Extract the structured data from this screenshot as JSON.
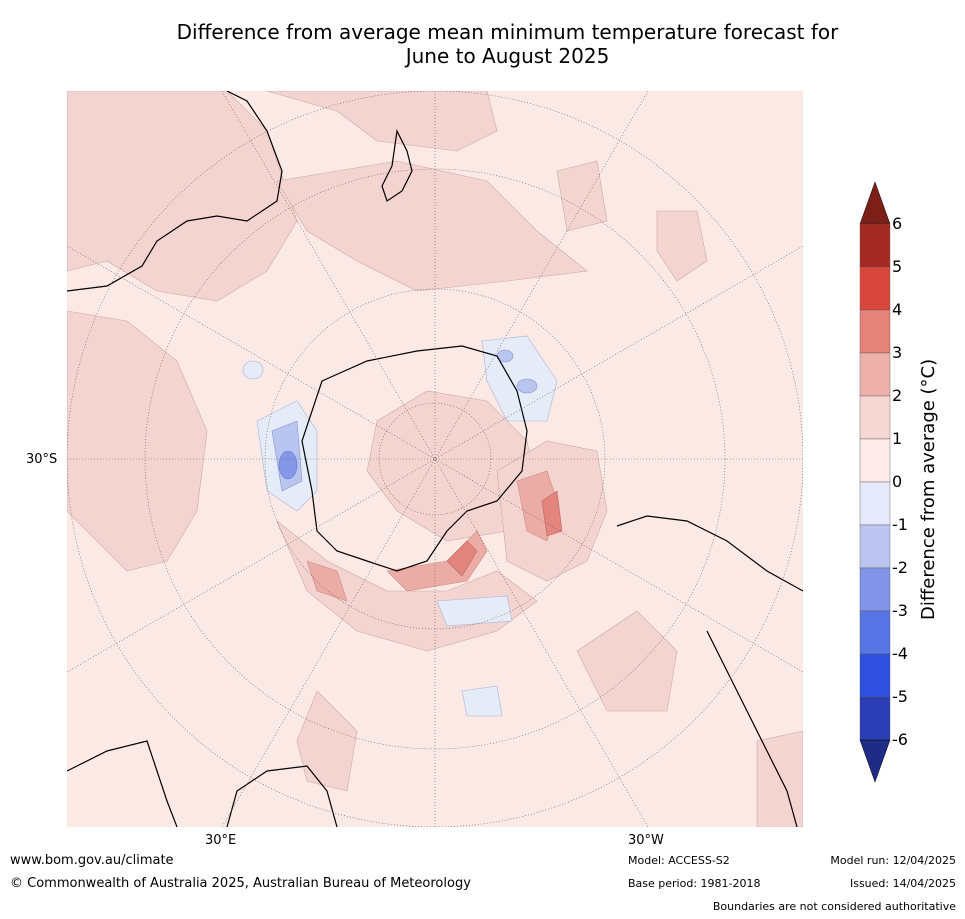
{
  "title_line1": "Difference from average mean minimum temperature forecast for",
  "title_line2": "June to August 2025",
  "map": {
    "lat_label": "30°S",
    "lon_labels": [
      "30°E",
      "30°W"
    ],
    "colors": {
      "ocean_bg": "#fbe9e6",
      "pos_0_1": "#fbe9e6",
      "pos_1_2": "#f4d4d0",
      "pos_2_3": "#ebaca5",
      "pos_3_4": "#e3857c",
      "neg_0_1": "#e6ebf8",
      "neg_1_2": "#bac5ef",
      "neg_2_3": "#8497e8"
    }
  },
  "colorbar": {
    "axis_label": "Difference from average (°C)",
    "ticks": [
      "6",
      "5",
      "4",
      "3",
      "2",
      "1",
      "0",
      "-1",
      "-2",
      "-3",
      "-4",
      "-5",
      "-6"
    ],
    "colors": [
      "#a42a23",
      "#d9473c",
      "#e5837a",
      "#eeb1aa",
      "#f6d6d3",
      "#fcebe9",
      "#e5e9f9",
      "#bcc5f0",
      "#8194e7",
      "#5775e5",
      "#2f4fe0",
      "#2b3db5"
    ],
    "top_arrow_color": "#7b1f17",
    "bottom_arrow_color": "#1f2b85"
  },
  "footer": {
    "website": "www.bom.gov.au/climate",
    "copyright": "© Commonwealth of Australia 2025, Australian Bureau of Meteorology",
    "model": "Model: ACCESS-S2",
    "base_period": "Base period: 1981-2018",
    "model_run": "Model run: 12/04/2025",
    "issued": "Issued: 14/04/2025",
    "disclaimer": "Boundaries are not considered authoritative"
  }
}
